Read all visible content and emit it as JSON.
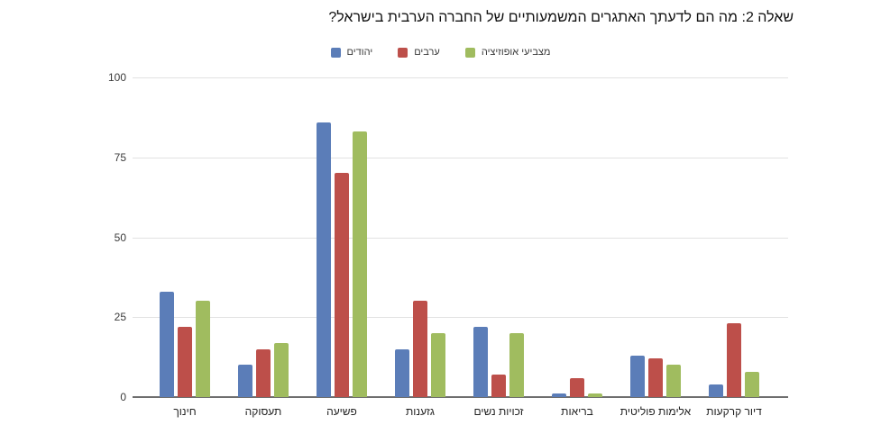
{
  "title": "שאלה 2: מה הם לדעתך האתגרים המשמעותיים של החברה הערבית בישראל?",
  "legend": [
    {
      "label": "יהודים",
      "color": "#5b7db8"
    },
    {
      "label": "ערבים",
      "color": "#bd4f4a"
    },
    {
      "label": "מצביעי אופוזיציה",
      "color": "#a0bc5f"
    }
  ],
  "chart_data": {
    "type": "bar",
    "title": "שאלה 2: מה הם לדעתך האתגרים המשמעותיים של החברה הערבית בישראל?",
    "categories": [
      "חינוך",
      "תעסוקה",
      "פשיעה",
      "גזענות",
      "זכויות נשים",
      "בריאות",
      "אלימות פוליטית",
      "דיור קרקעות"
    ],
    "series": [
      {
        "name": "יהודים",
        "color": "#5b7db8",
        "values": [
          33,
          10,
          86,
          15,
          22,
          1,
          13,
          4
        ]
      },
      {
        "name": "ערבים",
        "color": "#bd4f4a",
        "values": [
          22,
          15,
          70,
          30,
          7,
          6,
          12,
          23
        ]
      },
      {
        "name": "מצביעי אופוזיציה",
        "color": "#a0bc5f",
        "values": [
          30,
          17,
          83,
          20,
          20,
          1,
          10,
          8
        ]
      }
    ],
    "xlabel": "",
    "ylabel": "",
    "ylim": [
      0,
      100
    ],
    "yticks": [
      0,
      25,
      50,
      75,
      100
    ],
    "grid": true,
    "legend_position": "top-center",
    "background": "#ffffff"
  }
}
